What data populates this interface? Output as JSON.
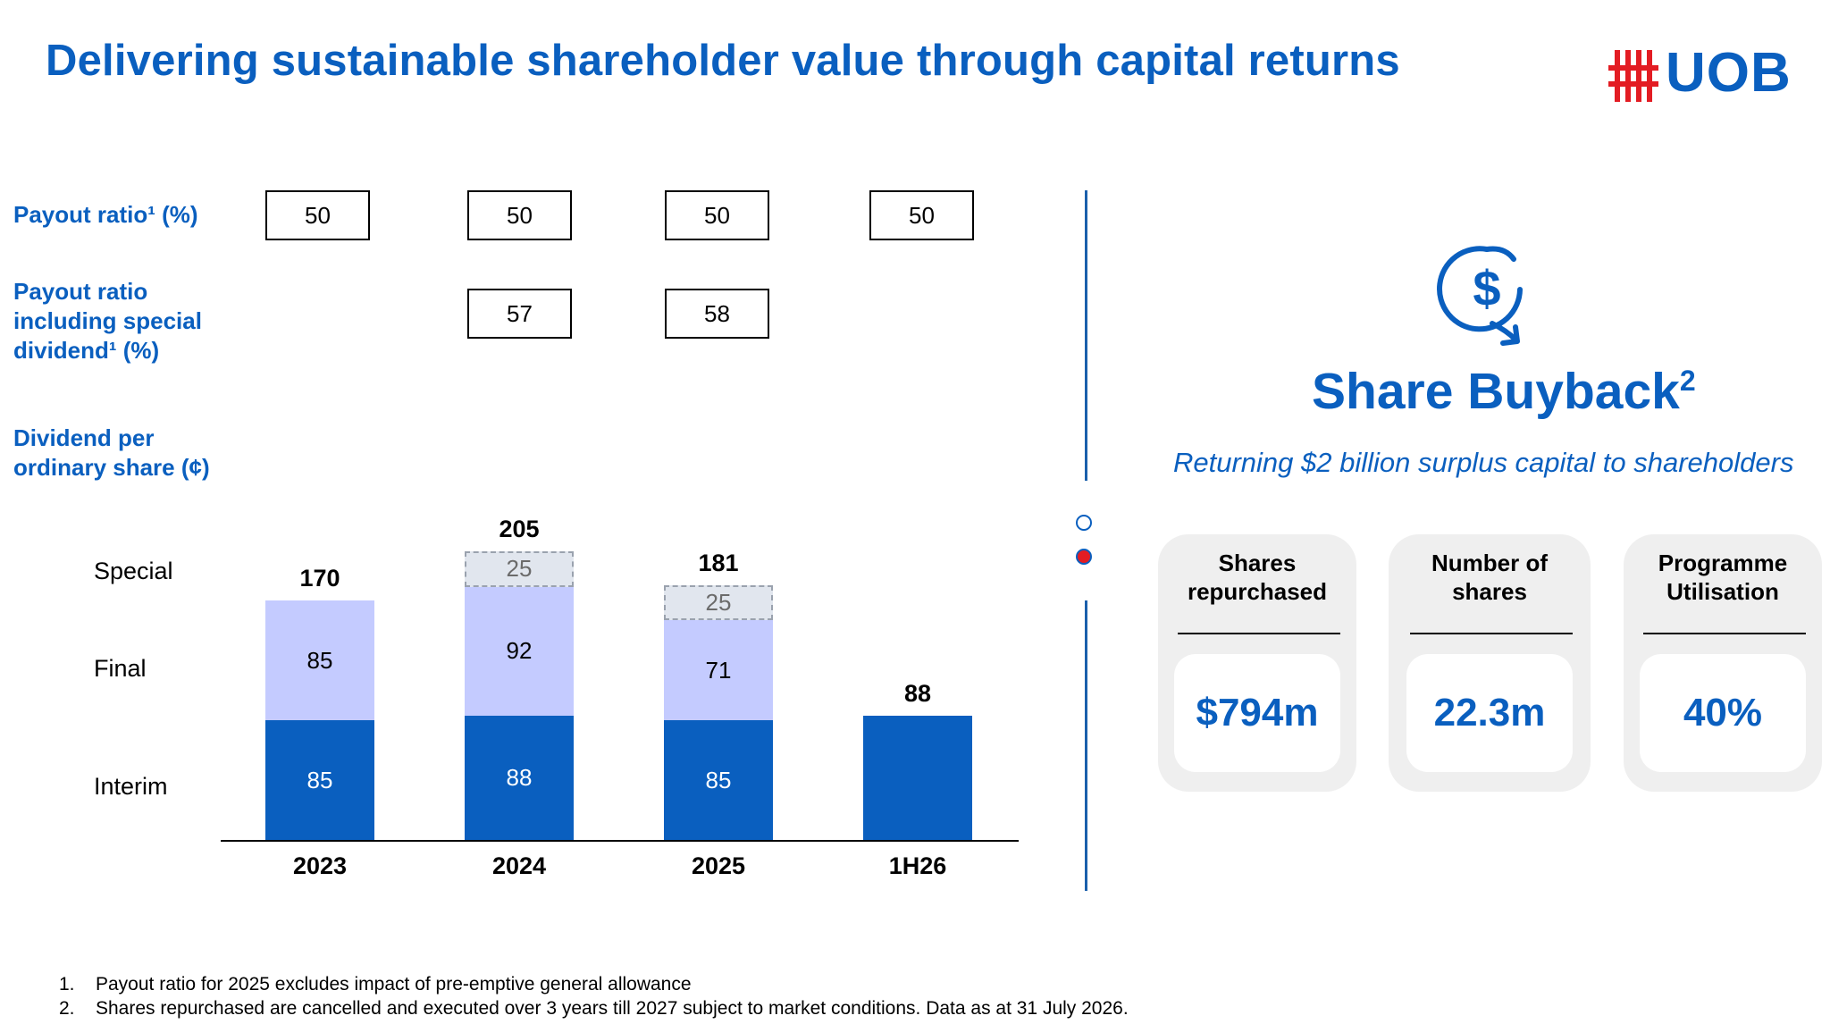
{
  "title": "Delivering sustainable shareholder value through capital returns",
  "logo": {
    "text": "UOB",
    "brand_red": "#e31c23",
    "brand_blue": "#0a5fbf"
  },
  "row_labels": {
    "payout_ratio": "Payout ratio¹ (%)",
    "payout_ratio_special_line1": "Payout ratio",
    "payout_ratio_special_line2": "including special",
    "payout_ratio_special_line3": "dividend¹ (%)",
    "dps_line1": "Dividend per",
    "dps_line2": "ordinary share (¢)"
  },
  "payout_ratio": [
    "50",
    "50",
    "50",
    "50"
  ],
  "payout_ratio_special": [
    "57",
    "58"
  ],
  "segment_labels": {
    "special": "Special",
    "final": "Final",
    "interim": "Interim"
  },
  "chart_data": {
    "type": "bar",
    "stacked": true,
    "categories": [
      "2023",
      "2024",
      "2025",
      "1H26"
    ],
    "series": [
      {
        "name": "Interim",
        "values": [
          85,
          88,
          85,
          88
        ],
        "color": "#0a5fbf"
      },
      {
        "name": "Final",
        "values": [
          85,
          92,
          71,
          0
        ],
        "color": "#c4cbff"
      },
      {
        "name": "Special",
        "values": [
          0,
          25,
          25,
          0
        ],
        "color": "#e1e6ee"
      }
    ],
    "totals": [
      "170",
      "205",
      "181",
      "88"
    ],
    "labels": {
      "interim": [
        "85",
        "88",
        "85",
        ""
      ],
      "final": [
        "85",
        "92",
        "71",
        ""
      ],
      "special": [
        "",
        "25",
        "25",
        ""
      ]
    },
    "ylabel": "Dividend per ordinary share (¢)",
    "ylim": [
      0,
      210
    ]
  },
  "nav": {
    "dot_count": 2,
    "active_index": 1
  },
  "buyback": {
    "title": "Share Buyback",
    "title_sup": "2",
    "subtitle": "Returning $2 billion surplus capital to shareholders",
    "icon": "dollar-cycle-icon",
    "cards": [
      {
        "head1": "Shares",
        "head2": "repurchased",
        "value": "$794m"
      },
      {
        "head1": "Number of",
        "head2": "shares",
        "value": "22.3m"
      },
      {
        "head1": "Programme",
        "head2": "Utilisation",
        "value": "40%"
      }
    ]
  },
  "footnotes": {
    "n1": "1.",
    "f1": "Payout ratio for 2025 excludes impact of pre-emptive general allowance",
    "n2": "2.",
    "f2": "Shares repurchased are cancelled and executed over 3 years till 2027 subject to market conditions. Data as at 31 July 2026."
  }
}
